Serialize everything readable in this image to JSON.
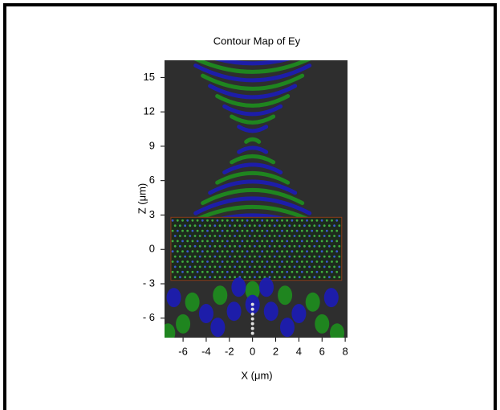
{
  "chart_data": {
    "type": "contour",
    "title": "Contour Map of Ey",
    "xlabel": "X (μm)",
    "ylabel": "Z (μm)",
    "xlim": [
      -7.6,
      8.2
    ],
    "xticks": [
      -6,
      -4,
      -2,
      0,
      2,
      4,
      6,
      8
    ],
    "ylim": [
      -7.7,
      16.5
    ],
    "yticks": [
      {
        "value": -6,
        "label": "- 6"
      },
      {
        "value": -3,
        "label": "- 3"
      },
      0,
      3,
      6,
      9,
      12,
      15
    ]
  }
}
